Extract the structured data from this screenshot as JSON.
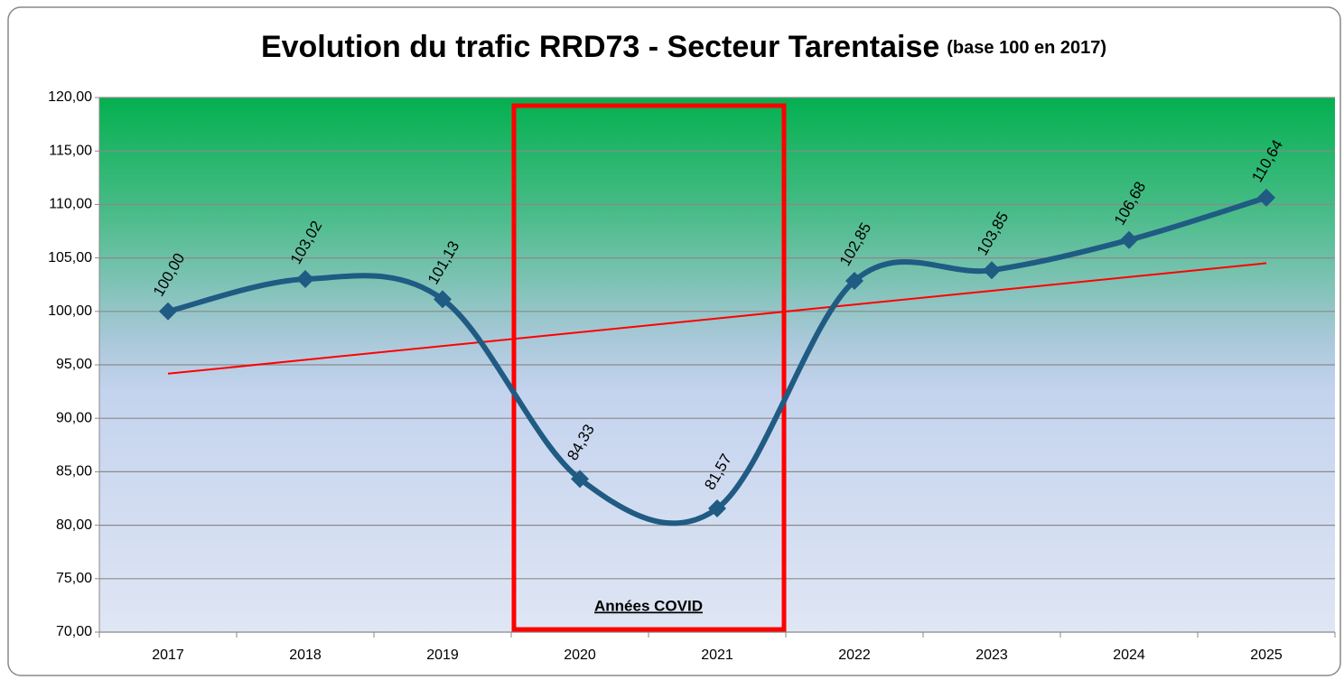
{
  "chart_data": {
    "type": "line",
    "title": "Evolution du trafic RRD73 - Secteur Tarentaise",
    "subtitle": "(base 100 en 2017)",
    "annotation": "Années COVID",
    "categories": [
      "2017",
      "2018",
      "2019",
      "2020",
      "2021",
      "2022",
      "2023",
      "2024",
      "2025"
    ],
    "series": [
      {
        "color": "#1f5b82",
        "values": [
          100,
          103.02,
          101.13,
          84.33,
          81.57,
          102.85,
          103.85,
          106.68,
          110.64
        ],
        "value_labels": [
          "100,00",
          "103,02",
          "101,13",
          "84,33",
          "81,57",
          "102,85",
          "103,85",
          "106,68",
          "110,64"
        ]
      }
    ],
    "trendline": {
      "color": "#ff0000"
    },
    "ylim": [
      70,
      120
    ],
    "yticks": [
      {
        "value": 70,
        "label": "70,00"
      },
      {
        "value": 75,
        "label": "75,00"
      },
      {
        "value": 80,
        "label": "80,00"
      },
      {
        "value": 85,
        "label": "85,00"
      },
      {
        "value": 90,
        "label": "90,00"
      },
      {
        "value": 95,
        "label": "95,00"
      },
      {
        "value": 100,
        "label": "100,00"
      },
      {
        "value": 105,
        "label": "105,00"
      },
      {
        "value": 110,
        "label": "110,00"
      },
      {
        "value": 115,
        "label": "115,00"
      },
      {
        "value": 120,
        "label": "120,00"
      }
    ],
    "grid": true
  }
}
